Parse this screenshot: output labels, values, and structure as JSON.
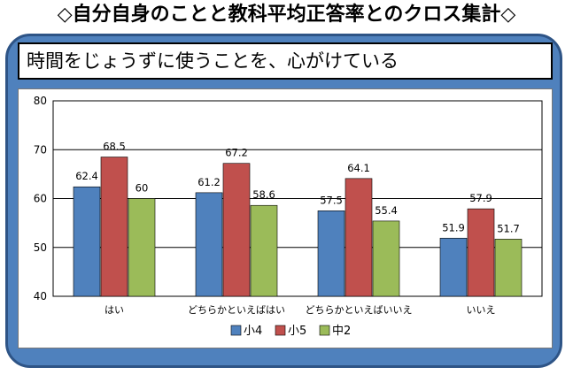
{
  "page": {
    "title": "◇自分自身のことと教科平均正答率とのクロス集計◇",
    "subtitle": "時間をじょうずに使うことを、心がけている"
  },
  "colors": {
    "frame": "#4f81bd",
    "frame_border": "#2e5486"
  },
  "chart_data": {
    "type": "bar",
    "categories": [
      "はい",
      "どちらかといえばはい",
      "どちらかといえばいいえ",
      "いいえ"
    ],
    "series": [
      {
        "name": "小4",
        "values": [
          62.4,
          61.2,
          57.5,
          51.9
        ],
        "color": "#4f81bd"
      },
      {
        "name": "小5",
        "values": [
          68.5,
          67.2,
          64.1,
          57.9
        ],
        "color": "#c0504d"
      },
      {
        "name": "中2",
        "values": [
          60,
          58.6,
          55.4,
          51.7
        ],
        "color": "#9bbb59"
      }
    ],
    "ylim": [
      40,
      80
    ],
    "yticks": [
      40,
      50,
      60,
      70,
      80
    ],
    "grid": true,
    "legend": "bottom"
  }
}
